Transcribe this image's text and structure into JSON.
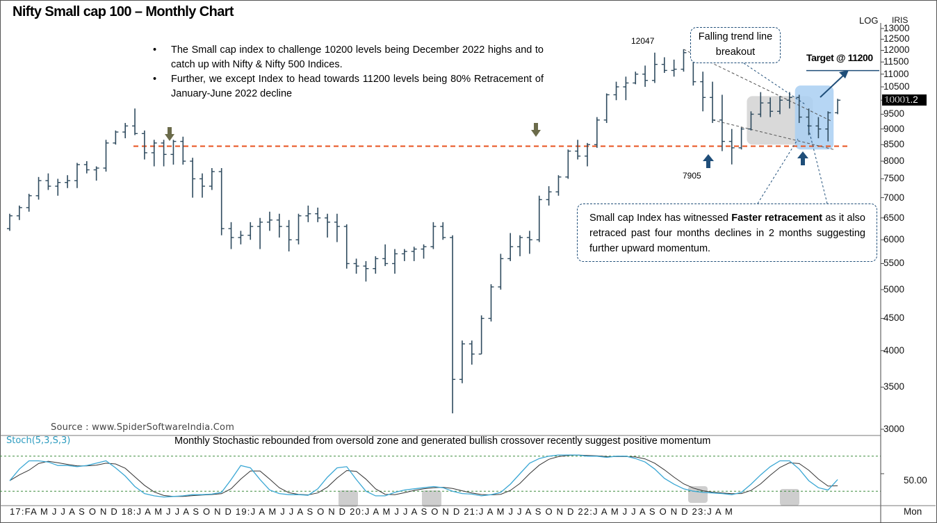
{
  "header": {
    "title": "Nifty Small cap 100 – Monthly Chart"
  },
  "annotations": {
    "bullets": [
      "The Small cap index to challenge 10200 levels being December 2022 highs and to catch up with Nifty & Nifty 500 Indices.",
      "Further, we except Index to head towards 11200 levels being 80% Retracement of January-June 2022 decline"
    ],
    "breakout_callout": "Falling trend line breakout",
    "retrace_callout_pre": "Small cap Index has witnessed ",
    "retrace_callout_bold": "Faster retracement",
    "retrace_callout_post": " as it also retraced past four months declines in 2 months suggesting further upward momentum.",
    "target": "Target @ 11200",
    "high_label": "12047",
    "low_label": "7905",
    "source": "Source : www.SpiderSoftwareIndia.Com",
    "stoch_label": "Stoch(5,3,S,3)",
    "stoch_note": "Monthly  Stochastic rebounded from oversold zone and generated bullish crossover recently suggest positive momentum",
    "log_label": "LOG",
    "tris_label": "IRIS",
    "last_price": "10001.2",
    "period_label": "Mon",
    "stoch_axis_label": "50.00"
  },
  "colors": {
    "bars": "#2e4a5e",
    "support_line": "#e8521e",
    "arrow_down": "#6b6b4a",
    "arrow_up": "#1f4e79",
    "stoch_k": "#3aa7d4",
    "stoch_d": "#333333",
    "highlight_blue": "#a9cff2",
    "highlight_gray": "#d2d2d2"
  },
  "chart_data": {
    "type": "ohlc",
    "scale": "log",
    "y_ticks": [
      13000,
      12500,
      12000,
      11500,
      11000,
      10500,
      10000,
      9500,
      9000,
      8500,
      8000,
      7500,
      7000,
      6500,
      6000,
      5500,
      5000,
      4500,
      4000,
      3500,
      3000
    ],
    "y_tick_labels": [
      "13000",
      "12500",
      "12000",
      "11500",
      "11000",
      "10500",
      "10000",
      "9500",
      "9000",
      "8500",
      "8000",
      "7500",
      "7000",
      "6500",
      "6000",
      "5500",
      "5000",
      "4500",
      "4000",
      "3500",
      "3000"
    ],
    "x_labels": [
      "17:F",
      "A",
      "M",
      "J",
      "J",
      "A",
      "S",
      "O",
      "N",
      "D",
      "18:J",
      "A",
      "M",
      "J",
      "J",
      "A",
      "S",
      "O",
      "N",
      "D",
      "19:J",
      "A",
      "M",
      "J",
      "J",
      "A",
      "S",
      "O",
      "N",
      "D",
      "20:J",
      "A",
      "M",
      "J",
      "J",
      "A",
      "S",
      "O",
      "N",
      "D",
      "21:J",
      "A",
      "M",
      "J",
      "J",
      "A",
      "S",
      "O",
      "N",
      "D",
      "22:J",
      "A",
      "M",
      "J",
      "J",
      "A",
      "S",
      "O",
      "N",
      "D",
      "23:J",
      "A",
      "M"
    ],
    "x_label_line": "17:FA M J  J  A S O N D 18:J   A M J  J  A S O N D 19:J   A M J  J  A S O N D 20:J   A M J  J  A S O N D 21:J   A M J  J  A S O N D 22:J   A M J  J  A S O N D 23:J   A M",
    "support_level": 8450,
    "target_level": 11200,
    "ohlc": [
      [
        6250,
        6600,
        6200,
        6550
      ],
      [
        6550,
        6800,
        6450,
        6750
      ],
      [
        6750,
        7100,
        6650,
        7050
      ],
      [
        7050,
        7550,
        6950,
        7450
      ],
      [
        7450,
        7650,
        7200,
        7300
      ],
      [
        7300,
        7500,
        7050,
        7400
      ],
      [
        7400,
        7600,
        7250,
        7450
      ],
      [
        7450,
        7950,
        7250,
        7900
      ],
      [
        7900,
        8000,
        7650,
        7750
      ],
      [
        7750,
        7850,
        7450,
        7800
      ],
      [
        7800,
        8650,
        7700,
        8550
      ],
      [
        8550,
        8950,
        8500,
        8900
      ],
      [
        8900,
        9200,
        8700,
        9100
      ],
      [
        9100,
        9700,
        8800,
        8850
      ],
      [
        8850,
        8950,
        8050,
        8250
      ],
      [
        8250,
        8650,
        7850,
        8550
      ],
      [
        8550,
        8650,
        7850,
        8200
      ],
      [
        8200,
        8650,
        7900,
        8600
      ],
      [
        8600,
        8750,
        7900,
        8000
      ],
      [
        8000,
        8100,
        7000,
        7500
      ],
      [
        7500,
        7650,
        7000,
        7300
      ],
      [
        7300,
        7800,
        7200,
        7700
      ],
      [
        7700,
        7800,
        6100,
        6250
      ],
      [
        6250,
        6400,
        5800,
        6050
      ],
      [
        6050,
        6200,
        5900,
        6100
      ],
      [
        6100,
        6400,
        6000,
        6300
      ],
      [
        6300,
        6500,
        5800,
        6400
      ],
      [
        6400,
        6650,
        6200,
        6450
      ],
      [
        6450,
        6600,
        6050,
        6300
      ],
      [
        6300,
        6450,
        5750,
        6000
      ],
      [
        6000,
        6600,
        5900,
        6550
      ],
      [
        6550,
        6800,
        6400,
        6600
      ],
      [
        6600,
        6750,
        6400,
        6500
      ],
      [
        6500,
        6600,
        6050,
        6400
      ],
      [
        6400,
        6600,
        5950,
        6300
      ],
      [
        6300,
        6350,
        5400,
        5500
      ],
      [
        5500,
        5600,
        5300,
        5450
      ],
      [
        5450,
        5550,
        5150,
        5400
      ],
      [
        5400,
        5650,
        5300,
        5600
      ],
      [
        5600,
        5900,
        5450,
        5500
      ],
      [
        5500,
        5800,
        5300,
        5700
      ],
      [
        5700,
        5800,
        5550,
        5750
      ],
      [
        5750,
        5850,
        5550,
        5800
      ],
      [
        5800,
        5900,
        5600,
        5850
      ],
      [
        5850,
        6400,
        5800,
        6300
      ],
      [
        6300,
        6400,
        6000,
        6050
      ],
      [
        6050,
        6100,
        3180,
        3600
      ],
      [
        3600,
        4150,
        3550,
        4100
      ],
      [
        4100,
        4150,
        3800,
        3950
      ],
      [
        3950,
        4550,
        3950,
        4500
      ],
      [
        4500,
        5100,
        4450,
        5050
      ],
      [
        5050,
        5700,
        5000,
        5600
      ],
      [
        5600,
        6150,
        5550,
        5850
      ],
      [
        5850,
        6100,
        5650,
        6050
      ],
      [
        6050,
        6200,
        5700,
        6000
      ],
      [
        6000,
        7050,
        5950,
        6950
      ],
      [
        6950,
        7300,
        6800,
        7150
      ],
      [
        7150,
        7600,
        7050,
        7550
      ],
      [
        7550,
        8350,
        7500,
        8300
      ],
      [
        8300,
        8650,
        8050,
        8150
      ],
      [
        8150,
        8550,
        7850,
        8500
      ],
      [
        8500,
        9400,
        8400,
        9300
      ],
      [
        9300,
        10250,
        9200,
        10200
      ],
      [
        10200,
        10700,
        10000,
        10500
      ],
      [
        10500,
        10900,
        10000,
        10650
      ],
      [
        10650,
        11100,
        10600,
        11000
      ],
      [
        11000,
        11350,
        10500,
        10750
      ],
      [
        10750,
        11900,
        10650,
        11400
      ],
      [
        11400,
        11700,
        11050,
        11150
      ],
      [
        11150,
        11600,
        10900,
        11200
      ],
      [
        11200,
        12047,
        11100,
        11900
      ],
      [
        11900,
        11950,
        10550,
        10700
      ],
      [
        10700,
        11100,
        9600,
        10100
      ],
      [
        10100,
        10700,
        9200,
        9300
      ],
      [
        9300,
        10200,
        8300,
        8600
      ],
      [
        8600,
        9000,
        7905,
        8400
      ],
      [
        8400,
        9050,
        8350,
        9000
      ],
      [
        9000,
        9600,
        8950,
        9500
      ],
      [
        9500,
        10300,
        9400,
        9900
      ],
      [
        9900,
        10100,
        9400,
        9600
      ],
      [
        9600,
        10150,
        9500,
        10000
      ],
      [
        10000,
        10300,
        9700,
        10100
      ],
      [
        10100,
        10200,
        9200,
        9400
      ],
      [
        9400,
        9700,
        8800,
        9100
      ],
      [
        9100,
        9400,
        8700,
        9000
      ],
      [
        9000,
        9600,
        8600,
        9550
      ],
      [
        9550,
        10050,
        9500,
        10000
      ]
    ],
    "stochastic": {
      "k": [
        38,
        58,
        72,
        72,
        70,
        64,
        64,
        62,
        64,
        68,
        72,
        60,
        46,
        28,
        16,
        12,
        10,
        11,
        12,
        14,
        14,
        15,
        18,
        40,
        64,
        60,
        40,
        22,
        16,
        14,
        14,
        13,
        24,
        44,
        60,
        62,
        40,
        20,
        12,
        12,
        18,
        22,
        24,
        26,
        28,
        26,
        20,
        16,
        15,
        12,
        14,
        18,
        32,
        50,
        68,
        76,
        80,
        82,
        82,
        82,
        80,
        80,
        78,
        80,
        80,
        76,
        70,
        58,
        42,
        32,
        24,
        20,
        18,
        17,
        16,
        14,
        18,
        32,
        48,
        62,
        72,
        72,
        58,
        38,
        26,
        22,
        40
      ]
    }
  }
}
